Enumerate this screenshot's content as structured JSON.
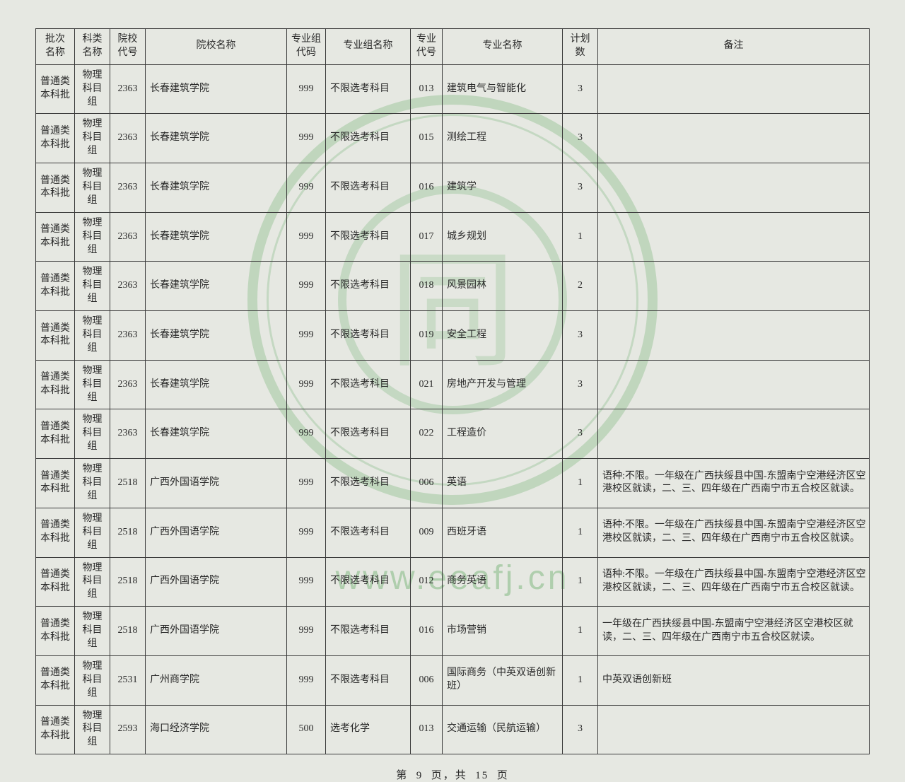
{
  "watermark": {
    "glyph": "同",
    "url": "www.eeafj.cn"
  },
  "columns": [
    "批次\n名称",
    "科类\n名称",
    "院校\n代号",
    "院校名称",
    "专业组\n代码",
    "专业组名称",
    "专业\n代号",
    "专业名称",
    "计划数",
    "备注"
  ],
  "rows": [
    [
      "普通类\n本科批",
      "物理\n科目组",
      "2363",
      "长春建筑学院",
      "999",
      "不限选考科目",
      "013",
      "建筑电气与智能化",
      "3",
      ""
    ],
    [
      "普通类\n本科批",
      "物理\n科目组",
      "2363",
      "长春建筑学院",
      "999",
      "不限选考科目",
      "015",
      "测绘工程",
      "3",
      ""
    ],
    [
      "普通类\n本科批",
      "物理\n科目组",
      "2363",
      "长春建筑学院",
      "999",
      "不限选考科目",
      "016",
      "建筑学",
      "3",
      ""
    ],
    [
      "普通类\n本科批",
      "物理\n科目组",
      "2363",
      "长春建筑学院",
      "999",
      "不限选考科目",
      "017",
      "城乡规划",
      "1",
      ""
    ],
    [
      "普通类\n本科批",
      "物理\n科目组",
      "2363",
      "长春建筑学院",
      "999",
      "不限选考科目",
      "018",
      "风景园林",
      "2",
      ""
    ],
    [
      "普通类\n本科批",
      "物理\n科目组",
      "2363",
      "长春建筑学院",
      "999",
      "不限选考科目",
      "019",
      "安全工程",
      "3",
      ""
    ],
    [
      "普通类\n本科批",
      "物理\n科目组",
      "2363",
      "长春建筑学院",
      "999",
      "不限选考科目",
      "021",
      "房地产开发与管理",
      "3",
      ""
    ],
    [
      "普通类\n本科批",
      "物理\n科目组",
      "2363",
      "长春建筑学院",
      "999",
      "不限选考科目",
      "022",
      "工程造价",
      "3",
      ""
    ],
    [
      "普通类\n本科批",
      "物理\n科目组",
      "2518",
      "广西外国语学院",
      "999",
      "不限选考科目",
      "006",
      "英语",
      "1",
      "语种:不限。一年级在广西扶绥县中国-东盟南宁空港经济区空港校区就读，二、三、四年级在广西南宁市五合校区就读。"
    ],
    [
      "普通类\n本科批",
      "物理\n科目组",
      "2518",
      "广西外国语学院",
      "999",
      "不限选考科目",
      "009",
      "西班牙语",
      "1",
      "语种:不限。一年级在广西扶绥县中国-东盟南宁空港经济区空港校区就读，二、三、四年级在广西南宁市五合校区就读。"
    ],
    [
      "普通类\n本科批",
      "物理\n科目组",
      "2518",
      "广西外国语学院",
      "999",
      "不限选考科目",
      "012",
      "商务英语",
      "1",
      "语种:不限。一年级在广西扶绥县中国-东盟南宁空港经济区空港校区就读，二、三、四年级在广西南宁市五合校区就读。"
    ],
    [
      "普通类\n本科批",
      "物理\n科目组",
      "2518",
      "广西外国语学院",
      "999",
      "不限选考科目",
      "016",
      "市场营销",
      "1",
      "一年级在广西扶绥县中国-东盟南宁空港经济区空港校区就读，二、三、四年级在广西南宁市五合校区就读。"
    ],
    [
      "普通类\n本科批",
      "物理\n科目组",
      "2531",
      "广州商学院",
      "999",
      "不限选考科目",
      "006",
      "国际商务（中英双语创新班）",
      "1",
      "中英双语创新班"
    ],
    [
      "普通类\n本科批",
      "物理\n科目组",
      "2593",
      "海口经济学院",
      "500",
      "选考化学",
      "013",
      "交通运输（民航运输）",
      "3",
      ""
    ]
  ],
  "pager": {
    "page_label": "第",
    "page": "9",
    "of_label": "页，共",
    "total": "15",
    "suffix": "页"
  },
  "alignment": [
    "c",
    "c",
    "c",
    "l",
    "c",
    "l",
    "c",
    "l",
    "c",
    "l"
  ]
}
